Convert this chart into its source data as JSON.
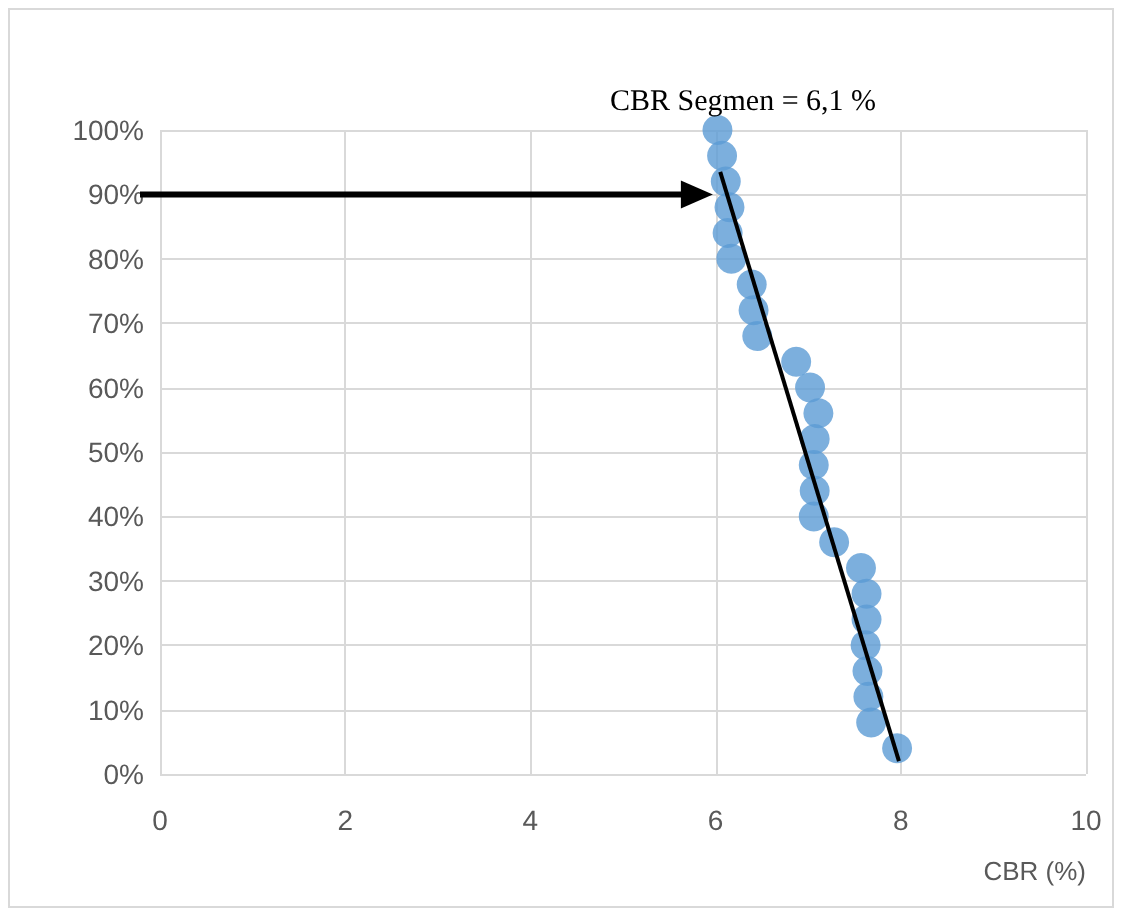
{
  "chart_data": {
    "type": "scatter",
    "xlabel": "CBR (%)",
    "annotations": [
      {
        "text": "CBR Segmen = 6,1 %",
        "x": 6.1,
        "y": 90
      }
    ],
    "series": [
      {
        "color": "#5b9bd5",
        "x": [
          6.02,
          6.07,
          6.11,
          6.15,
          6.13,
          6.17,
          6.39,
          6.41,
          6.45,
          6.87,
          7.02,
          7.11,
          7.07,
          7.06,
          7.07,
          7.06,
          7.28,
          7.57,
          7.63,
          7.63,
          7.62,
          7.64,
          7.65,
          7.68,
          7.96
        ],
        "values": [
          100,
          96,
          92,
          88,
          84,
          80,
          76,
          72,
          68,
          64,
          60,
          56,
          52,
          48,
          44,
          40,
          36,
          32,
          28,
          24,
          20,
          16,
          12,
          8,
          4
        ]
      },
      {
        "type": "line",
        "color": "#000000",
        "x": [
          6.05,
          7.98
        ],
        "values": [
          93.5,
          2
        ],
        "marker": "none"
      }
    ],
    "xlim": [
      0,
      10
    ],
    "xticks": [
      0,
      2,
      4,
      6,
      8,
      10
    ],
    "ylim": [
      0,
      100
    ],
    "yticks": [
      {
        "value": 0,
        "label": "0%"
      },
      {
        "value": 10,
        "label": "10%"
      },
      {
        "value": 20,
        "label": "20%"
      },
      {
        "value": 30,
        "label": "30%"
      },
      {
        "value": 40,
        "label": "40%"
      },
      {
        "value": 50,
        "label": "50%"
      },
      {
        "value": 60,
        "label": "60%"
      },
      {
        "value": 70,
        "label": "70%"
      },
      {
        "value": 80,
        "label": "80%"
      },
      {
        "value": 90,
        "label": "90%"
      },
      {
        "value": 100,
        "label": "100%"
      }
    ],
    "grid": true,
    "marker": "circle"
  }
}
